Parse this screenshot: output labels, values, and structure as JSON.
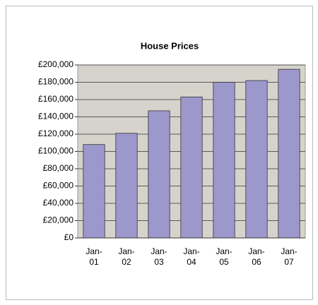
{
  "chart_data": {
    "type": "bar",
    "title": "House Prices",
    "categories": [
      "Jan-01",
      "Jan-02",
      "Jan-03",
      "Jan-04",
      "Jan-05",
      "Jan-06",
      "Jan-07"
    ],
    "values": [
      108000,
      121000,
      147000,
      163000,
      180000,
      182000,
      195000
    ],
    "color": "#9c98cc",
    "ylim": [
      0,
      200000
    ],
    "yticks": [
      {
        "value": 0,
        "label": "£0"
      },
      {
        "value": 20000,
        "label": "£20,000"
      },
      {
        "value": 40000,
        "label": "£40,000"
      },
      {
        "value": 60000,
        "label": "£60,000"
      },
      {
        "value": 80000,
        "label": "£80,000"
      },
      {
        "value": 100000,
        "label": "£100,000"
      },
      {
        "value": 120000,
        "label": "£120,000"
      },
      {
        "value": 140000,
        "label": "£140,000"
      },
      {
        "value": 160000,
        "label": "£160,000"
      },
      {
        "value": 180000,
        "label": "£180,000"
      },
      {
        "value": 200000,
        "label": "£200,000"
      }
    ],
    "grid": true
  }
}
